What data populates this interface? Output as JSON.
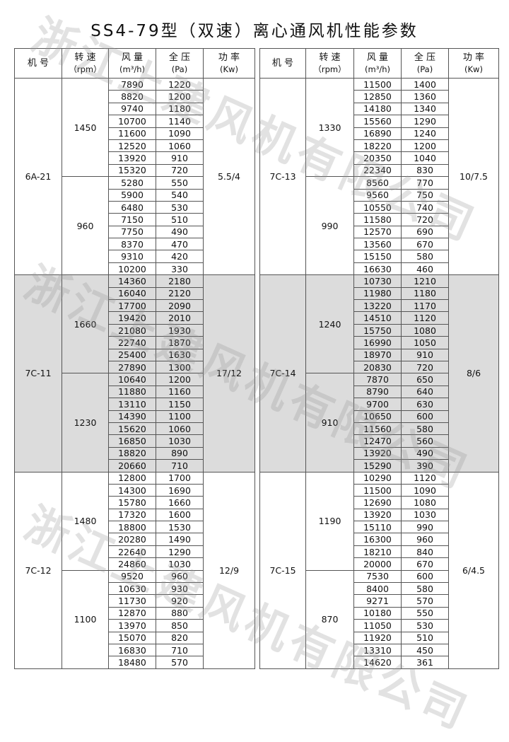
{
  "title": "SS4-79型（双速）离心通风机性能参数",
  "watermark": "浙江上建风机有限公司",
  "shade_color": "#dcdcdc",
  "headers": [
    {
      "main": "机 号",
      "sub": ""
    },
    {
      "main": "转 速",
      "sub": "（rpm）"
    },
    {
      "main": "风 量",
      "sub": "(m³/h)"
    },
    {
      "main": "全 压",
      "sub": "(Pa)"
    },
    {
      "main": "功 率",
      "sub": "(Kw)"
    }
  ],
  "tables": [
    {
      "models": [
        {
          "model": "6A-21",
          "power": "5.5/4",
          "shaded": false,
          "speeds": [
            {
              "rpm": "1450",
              "rows": [
                [
                  "7890",
                  "1220"
                ],
                [
                  "8820",
                  "1200"
                ],
                [
                  "9740",
                  "1180"
                ],
                [
                  "10700",
                  "1140"
                ],
                [
                  "11600",
                  "1090"
                ],
                [
                  "12520",
                  "1060"
                ],
                [
                  "13920",
                  "910"
                ],
                [
                  "15320",
                  "720"
                ]
              ]
            },
            {
              "rpm": "960",
              "rows": [
                [
                  "5280",
                  "550"
                ],
                [
                  "5900",
                  "540"
                ],
                [
                  "6480",
                  "530"
                ],
                [
                  "7150",
                  "510"
                ],
                [
                  "7750",
                  "490"
                ],
                [
                  "8370",
                  "470"
                ],
                [
                  "9310",
                  "420"
                ],
                [
                  "10200",
                  "330"
                ]
              ]
            }
          ]
        },
        {
          "model": "7C-11",
          "power": "17/12",
          "shaded": true,
          "speeds": [
            {
              "rpm": "1660",
              "rows": [
                [
                  "14360",
                  "2180"
                ],
                [
                  "16040",
                  "2120"
                ],
                [
                  "17700",
                  "2090"
                ],
                [
                  "19420",
                  "2010"
                ],
                [
                  "21080",
                  "1930"
                ],
                [
                  "22740",
                  "1870"
                ],
                [
                  "25400",
                  "1630"
                ],
                [
                  "27890",
                  "1300"
                ]
              ]
            },
            {
              "rpm": "1230",
              "rows": [
                [
                  "10640",
                  "1200"
                ],
                [
                  "11880",
                  "1160"
                ],
                [
                  "13110",
                  "1150"
                ],
                [
                  "14390",
                  "1100"
                ],
                [
                  "15620",
                  "1060"
                ],
                [
                  "16850",
                  "1030"
                ],
                [
                  "18820",
                  "890"
                ],
                [
                  "20660",
                  "710"
                ]
              ]
            }
          ]
        },
        {
          "model": "7C-12",
          "power": "12/9",
          "shaded": false,
          "speeds": [
            {
              "rpm": "1480",
              "rows": [
                [
                  "12800",
                  "1700"
                ],
                [
                  "14300",
                  "1690"
                ],
                [
                  "15780",
                  "1660"
                ],
                [
                  "17320",
                  "1600"
                ],
                [
                  "18800",
                  "1530"
                ],
                [
                  "20280",
                  "1490"
                ],
                [
                  "22640",
                  "1290"
                ],
                [
                  "24860",
                  "1030"
                ]
              ]
            },
            {
              "rpm": "1100",
              "rows": [
                [
                  "9520",
                  "960"
                ],
                [
                  "10630",
                  "930"
                ],
                [
                  "11730",
                  "920"
                ],
                [
                  "12870",
                  "880"
                ],
                [
                  "13970",
                  "850"
                ],
                [
                  "15070",
                  "820"
                ],
                [
                  "16830",
                  "710"
                ],
                [
                  "18480",
                  "570"
                ]
              ]
            }
          ]
        }
      ]
    },
    {
      "models": [
        {
          "model": "7C-13",
          "power": "10/7.5",
          "shaded": false,
          "speeds": [
            {
              "rpm": "1330",
              "rows": [
                [
                  "11500",
                  "1400"
                ],
                [
                  "12850",
                  "1360"
                ],
                [
                  "14180",
                  "1340"
                ],
                [
                  "15560",
                  "1290"
                ],
                [
                  "16890",
                  "1240"
                ],
                [
                  "18220",
                  "1200"
                ],
                [
                  "20350",
                  "1040"
                ],
                [
                  "22340",
                  "830"
                ]
              ]
            },
            {
              "rpm": "990",
              "rows": [
                [
                  "8560",
                  "770"
                ],
                [
                  "9560",
                  "750"
                ],
                [
                  "10550",
                  "740"
                ],
                [
                  "11580",
                  "720"
                ],
                [
                  "12570",
                  "690"
                ],
                [
                  "13560",
                  "670"
                ],
                [
                  "15150",
                  "580"
                ],
                [
                  "16630",
                  "460"
                ]
              ]
            }
          ]
        },
        {
          "model": "7C-14",
          "power": "8/6",
          "shaded": true,
          "speeds": [
            {
              "rpm": "1240",
              "rows": [
                [
                  "10730",
                  "1210"
                ],
                [
                  "11980",
                  "1180"
                ],
                [
                  "13220",
                  "1170"
                ],
                [
                  "14510",
                  "1120"
                ],
                [
                  "15750",
                  "1080"
                ],
                [
                  "16990",
                  "1050"
                ],
                [
                  "18970",
                  "910"
                ],
                [
                  "20830",
                  "720"
                ]
              ]
            },
            {
              "rpm": "910",
              "rows": [
                [
                  "7870",
                  "650"
                ],
                [
                  "8790",
                  "640"
                ],
                [
                  "9700",
                  "630"
                ],
                [
                  "10650",
                  "600"
                ],
                [
                  "11560",
                  "580"
                ],
                [
                  "12470",
                  "560"
                ],
                [
                  "13920",
                  "490"
                ],
                [
                  "15290",
                  "390"
                ]
              ]
            }
          ]
        },
        {
          "model": "7C-15",
          "power": "6/4.5",
          "shaded": false,
          "speeds": [
            {
              "rpm": "1190",
              "rows": [
                [
                  "10290",
                  "1120"
                ],
                [
                  "11500",
                  "1090"
                ],
                [
                  "12690",
                  "1080"
                ],
                [
                  "13920",
                  "1030"
                ],
                [
                  "15110",
                  "990"
                ],
                [
                  "16300",
                  "960"
                ],
                [
                  "18210",
                  "840"
                ],
                [
                  "20000",
                  "670"
                ]
              ]
            },
            {
              "rpm": "870",
              "rows": [
                [
                  "7530",
                  "600"
                ],
                [
                  "8400",
                  "580"
                ],
                [
                  "9271",
                  "570"
                ],
                [
                  "10180",
                  "550"
                ],
                [
                  "11050",
                  "530"
                ],
                [
                  "11920",
                  "510"
                ],
                [
                  "13310",
                  "450"
                ],
                [
                  "14620",
                  "361"
                ]
              ]
            }
          ]
        }
      ]
    }
  ]
}
